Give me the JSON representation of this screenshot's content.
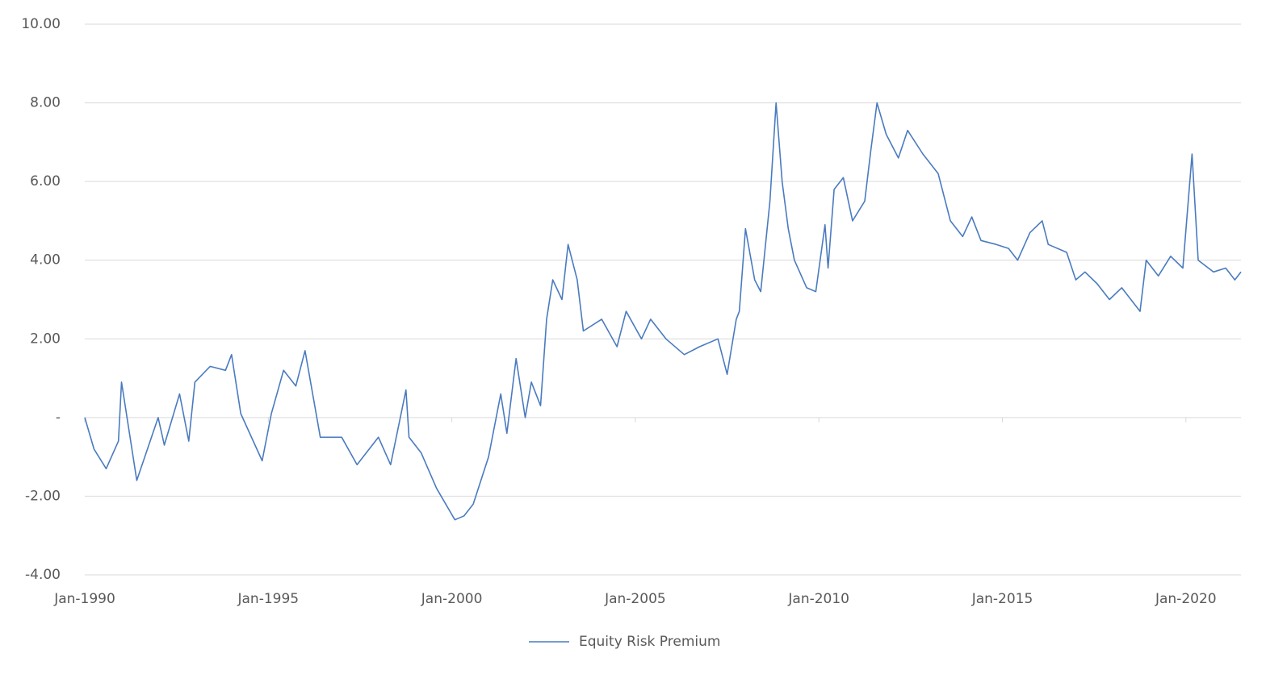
{
  "chart_data": {
    "type": "line",
    "x": [
      "1990-01",
      "1990-04",
      "1990-08",
      "1990-12",
      "1991-01",
      "1991-06",
      "1992-01",
      "1992-03",
      "1992-08",
      "1992-11",
      "1993-01",
      "1993-06",
      "1993-11",
      "1994-01",
      "1994-04",
      "1994-11",
      "1995-02",
      "1995-06",
      "1995-10",
      "1996-01",
      "1996-06",
      "1997-01",
      "1997-06",
      "1998-01",
      "1998-05",
      "1998-10",
      "1998-11",
      "1999-03",
      "1999-08",
      "2000-02",
      "2000-05",
      "2000-08",
      "2001-01",
      "2001-05",
      "2001-07",
      "2001-10",
      "2002-01",
      "2002-03",
      "2002-06",
      "2002-08",
      "2002-10",
      "2003-01",
      "2003-03",
      "2003-06",
      "2003-08",
      "2004-02",
      "2004-07",
      "2004-10",
      "2005-03",
      "2005-06",
      "2005-11",
      "2006-05",
      "2006-10",
      "2007-04",
      "2007-07",
      "2007-10",
      "2007-11",
      "2008-01",
      "2008-04",
      "2008-06",
      "2008-09",
      "2008-11",
      "2009-01",
      "2009-03",
      "2009-05",
      "2009-09",
      "2009-12",
      "2010-03",
      "2010-04",
      "2010-06",
      "2010-09",
      "2010-12",
      "2011-04",
      "2011-06",
      "2011-08",
      "2011-11",
      "2012-03",
      "2012-06",
      "2012-11",
      "2013-04",
      "2013-08",
      "2013-12",
      "2014-03",
      "2014-06",
      "2014-11",
      "2015-03",
      "2015-06",
      "2015-10",
      "2016-02",
      "2016-04",
      "2016-10",
      "2017-01",
      "2017-04",
      "2017-08",
      "2017-12",
      "2018-04",
      "2018-10",
      "2018-12",
      "2019-04",
      "2019-08",
      "2019-12",
      "2020-03",
      "2020-05",
      "2020-10",
      "2021-02",
      "2021-05",
      "2021-07"
    ],
    "series": [
      {
        "name": "Equity Risk Premium",
        "color": "#4a7bbf",
        "values": [
          0.0,
          -0.8,
          -1.3,
          -0.6,
          0.9,
          -1.6,
          0.0,
          -0.7,
          0.6,
          -0.6,
          0.9,
          1.3,
          1.2,
          1.6,
          0.1,
          -1.1,
          0.1,
          1.2,
          0.8,
          1.7,
          -0.5,
          -0.5,
          -1.2,
          -0.5,
          -1.2,
          0.7,
          -0.5,
          -0.9,
          -1.8,
          -2.6,
          -2.5,
          -2.2,
          -1.0,
          0.6,
          -0.4,
          1.5,
          0.0,
          0.9,
          0.3,
          2.5,
          3.5,
          3.0,
          4.4,
          3.5,
          2.2,
          2.5,
          1.8,
          2.7,
          2.0,
          2.5,
          2.0,
          1.6,
          1.8,
          2.0,
          1.1,
          2.5,
          2.7,
          4.8,
          3.5,
          3.2,
          5.5,
          8.0,
          6.0,
          4.8,
          4.0,
          3.3,
          3.2,
          4.9,
          3.8,
          5.8,
          6.1,
          5.0,
          5.5,
          6.8,
          8.0,
          7.2,
          6.6,
          7.3,
          6.7,
          6.2,
          5.0,
          4.6,
          5.1,
          4.5,
          4.4,
          4.3,
          4.0,
          4.7,
          5.0,
          4.4,
          4.2,
          3.5,
          3.7,
          3.4,
          3.0,
          3.3,
          2.7,
          4.0,
          3.6,
          4.1,
          3.8,
          6.7,
          4.0,
          3.7,
          3.8,
          3.5,
          3.7
        ]
      }
    ],
    "xlim": [
      "1990-01",
      "2021-07"
    ],
    "xticks": [
      {
        "value": "1990-01",
        "label": "Jan-1990"
      },
      {
        "value": "1995-01",
        "label": "Jan-1995"
      },
      {
        "value": "2000-01",
        "label": "Jan-2000"
      },
      {
        "value": "2005-01",
        "label": "Jan-2005"
      },
      {
        "value": "2010-01",
        "label": "Jan-2010"
      },
      {
        "value": "2015-01",
        "label": "Jan-2015"
      },
      {
        "value": "2020-01",
        "label": "Jan-2020"
      }
    ],
    "ylim": [
      -4,
      10
    ],
    "yticks": [
      {
        "value": -4,
        "label": "-4.00"
      },
      {
        "value": -2,
        "label": "-2.00"
      },
      {
        "value": 0,
        "label": "-"
      },
      {
        "value": 2,
        "label": "2.00"
      },
      {
        "value": 4,
        "label": "4.00"
      },
      {
        "value": 6,
        "label": "6.00"
      },
      {
        "value": 8,
        "label": "8.00"
      },
      {
        "value": 10,
        "label": "10.00"
      }
    ],
    "grid": true,
    "legend": "bottom"
  }
}
